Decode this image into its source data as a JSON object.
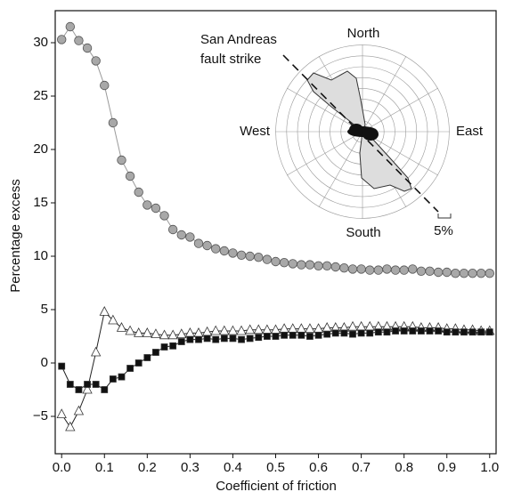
{
  "chart_data": {
    "type": "line",
    "xlabel": "Coefficient of friction",
    "ylabel": "Percentage excess",
    "x": [
      0,
      0.02,
      0.04,
      0.06,
      0.08,
      0.1,
      0.12,
      0.14,
      0.16,
      0.18,
      0.2,
      0.22,
      0.24,
      0.26,
      0.28,
      0.3,
      0.32,
      0.34,
      0.36,
      0.38,
      0.4,
      0.42,
      0.44,
      0.46,
      0.48,
      0.5,
      0.52,
      0.54,
      0.56,
      0.58,
      0.6,
      0.62,
      0.64,
      0.66,
      0.68,
      0.7,
      0.72,
      0.74,
      0.76,
      0.78,
      0.8,
      0.82,
      0.84,
      0.86,
      0.88,
      0.9,
      0.92,
      0.94,
      0.96,
      0.98,
      1.0
    ],
    "series": [
      {
        "color": "#a8a8a8",
        "marker": "circle",
        "values": [
          30.3,
          31.5,
          30.2,
          29.5,
          28.3,
          26,
          22.5,
          19,
          17.5,
          16,
          14.8,
          14.5,
          13.8,
          12.5,
          12,
          11.8,
          11.2,
          11,
          10.7,
          10.5,
          10.3,
          10.1,
          10,
          9.9,
          9.7,
          9.5,
          9.4,
          9.3,
          9.2,
          9.2,
          9.1,
          9.1,
          9,
          8.9,
          8.8,
          8.8,
          8.7,
          8.7,
          8.8,
          8.7,
          8.7,
          8.8,
          8.6,
          8.6,
          8.5,
          8.5,
          8.4,
          8.4,
          8.4,
          8.4,
          8.4
        ]
      },
      {
        "color": "#ffffff",
        "marker": "triangle",
        "values": [
          -4.8,
          -6,
          -4.5,
          -2.5,
          1,
          4.8,
          4,
          3.3,
          3,
          2.8,
          2.8,
          2.7,
          2.6,
          2.6,
          2.7,
          2.8,
          2.8,
          2.9,
          3,
          3,
          3,
          3,
          3.1,
          3.1,
          3.1,
          3.1,
          3.2,
          3.2,
          3.2,
          3.2,
          3.2,
          3.3,
          3.3,
          3.3,
          3.4,
          3.4,
          3.4,
          3.4,
          3.4,
          3.4,
          3.4,
          3.4,
          3.3,
          3.3,
          3.3,
          3.2,
          3.2,
          3.1,
          3.1,
          3,
          3
        ]
      },
      {
        "color": "#111111",
        "marker": "square",
        "values": [
          -0.3,
          -2,
          -2.5,
          -2,
          -2,
          -2.5,
          -1.5,
          -1.3,
          -0.5,
          0,
          0.5,
          1,
          1.5,
          1.6,
          2,
          2.2,
          2.2,
          2.3,
          2.2,
          2.3,
          2.3,
          2.2,
          2.3,
          2.4,
          2.5,
          2.5,
          2.6,
          2.6,
          2.6,
          2.5,
          2.6,
          2.7,
          2.8,
          2.8,
          2.7,
          2.8,
          2.8,
          2.9,
          2.9,
          3,
          3,
          3,
          3,
          3,
          3,
          2.9,
          2.9,
          2.9,
          2.9,
          2.9,
          2.9
        ]
      }
    ],
    "xlim": [
      -0.015,
      1.015
    ],
    "ylim": [
      -8.5,
      33
    ],
    "xticks": [
      {
        "value": 0,
        "label": "0.0"
      },
      0.1,
      0.2,
      0.3,
      0.4,
      0.5,
      0.6,
      0.7,
      0.8,
      0.9,
      {
        "value": 1,
        "label": "1.0"
      }
    ],
    "yticks": [
      {
        "value": -5,
        "label": "−5"
      },
      0,
      5,
      10,
      15,
      20,
      25,
      30
    ],
    "inset": {
      "north": "North",
      "south": "South",
      "east": "East",
      "west": "West",
      "annotation": [
        "San Andreas",
        "fault strike"
      ],
      "scale_label": "5%"
    }
  }
}
